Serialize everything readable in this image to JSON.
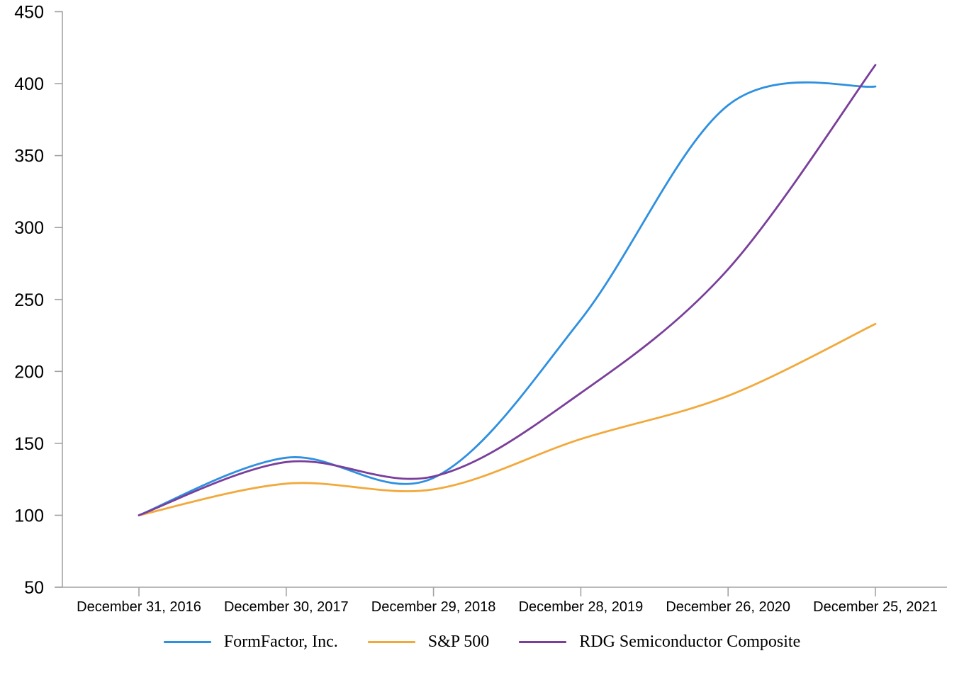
{
  "chart_data": {
    "type": "line",
    "title": "",
    "x_categories": [
      "December 31, 2016",
      "December 30, 2017",
      "December 29, 2018",
      "December 28, 2019",
      "December 26, 2020",
      "December 25, 2021"
    ],
    "series": [
      {
        "name": "FormFactor, Inc.",
        "color": "#2E90E0",
        "values": [
          100,
          140,
          126,
          236,
          385,
          398
        ]
      },
      {
        "name": "S&P 500",
        "color": "#F2A93B",
        "values": [
          100,
          122,
          118,
          153,
          183,
          233
        ]
      },
      {
        "name": "RDG Semiconductor Composite",
        "color": "#7A3E9B",
        "values": [
          100,
          137,
          127,
          185,
          271,
          413
        ]
      }
    ],
    "xlabel": "",
    "ylabel": "",
    "ylim": [
      50,
      450
    ],
    "y_tick_step": 50,
    "y_tick_labels": [
      "450",
      "400",
      "350",
      "300",
      "250",
      "200",
      "150",
      "100",
      "50"
    ],
    "grid": false,
    "legend_position": "bottom",
    "line_smoothing": true,
    "axis_color": "#A3A3A3",
    "text_color": "#000000"
  }
}
